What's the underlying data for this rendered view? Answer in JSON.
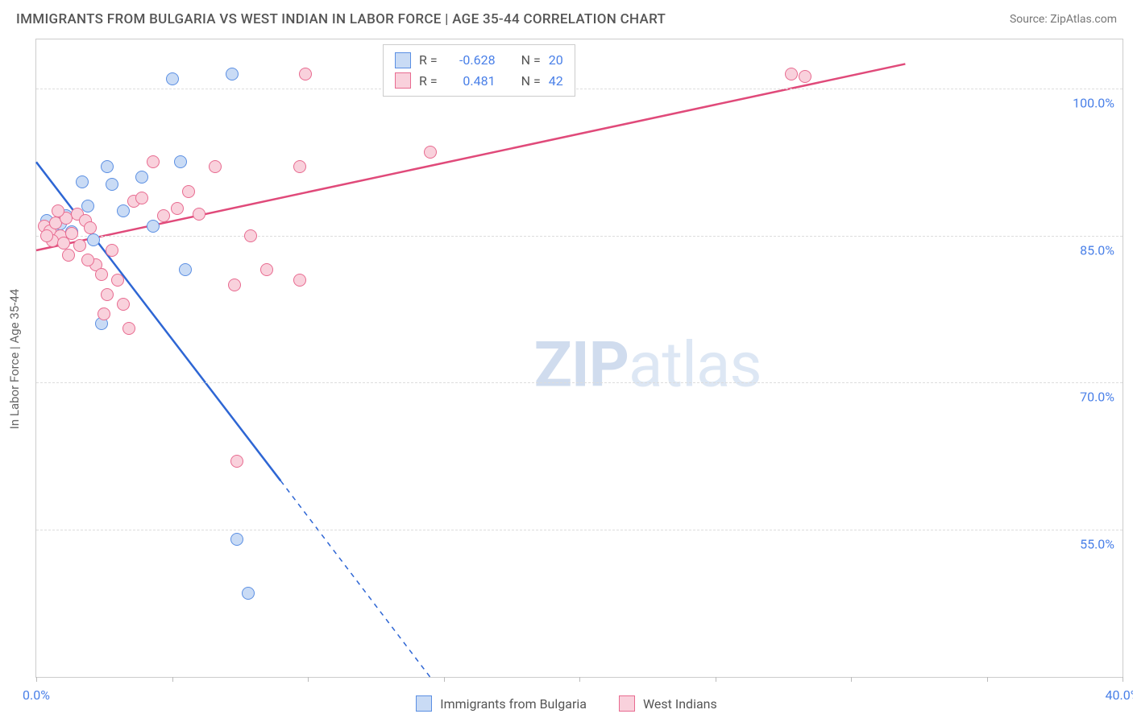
{
  "title": "IMMIGRANTS FROM BULGARIA VS WEST INDIAN IN LABOR FORCE | AGE 35-44 CORRELATION CHART",
  "source": "Source: ZipAtlas.com",
  "y_axis_title": "In Labor Force | Age 35-44",
  "watermark_bold": "ZIP",
  "watermark_light": "atlas",
  "chart": {
    "type": "scatter-with-regression",
    "xlim": [
      0,
      40
    ],
    "ylim": [
      40,
      105
    ],
    "x_ticks": [
      0,
      5,
      10,
      15,
      20,
      25,
      30,
      35,
      40
    ],
    "x_tick_labels": {
      "0": "0.0%",
      "40": "40.0%"
    },
    "y_grid": [
      55,
      70,
      85,
      100
    ],
    "y_tick_labels": {
      "55": "55.0%",
      "70": "70.0%",
      "85": "85.0%",
      "100": "100.0%"
    },
    "background_color": "#ffffff",
    "grid_color": "#dddddd",
    "axis_color": "#cccccc",
    "tick_label_color": "#4a80e8",
    "tick_fontsize": 16,
    "point_radius": 8,
    "point_stroke_width": 1.2,
    "line_width": 2.5,
    "series": [
      {
        "name": "Immigrants from Bulgaria",
        "fill": "#c9dbf5",
        "stroke": "#5b8fe3",
        "line_color": "#2e66d4",
        "R": "-0.628",
        "N": "20",
        "points": [
          [
            0.4,
            86.5
          ],
          [
            0.6,
            85.8
          ],
          [
            0.9,
            86.2
          ],
          [
            1.1,
            87.0
          ],
          [
            1.3,
            85.4
          ],
          [
            1.7,
            90.5
          ],
          [
            1.9,
            88.0
          ],
          [
            2.1,
            84.6
          ],
          [
            2.6,
            92.0
          ],
          [
            2.8,
            90.2
          ],
          [
            3.2,
            87.5
          ],
          [
            3.9,
            91.0
          ],
          [
            4.3,
            86.0
          ],
          [
            5.0,
            101.0
          ],
          [
            5.5,
            81.5
          ],
          [
            2.4,
            76.0
          ],
          [
            7.4,
            54.0
          ],
          [
            7.8,
            48.5
          ],
          [
            7.2,
            101.5
          ],
          [
            5.3,
            92.5
          ]
        ],
        "regression": {
          "x1": 0,
          "y1": 92.5,
          "x2": 9.0,
          "y2": 60.0,
          "dash_from_x": 9.0,
          "dash_x2": 14.5,
          "dash_y2": 40.0
        }
      },
      {
        "name": "West Indians",
        "fill": "#f9d1dc",
        "stroke": "#e86b90",
        "line_color": "#e04a7a",
        "R": "0.481",
        "N": "42",
        "points": [
          [
            0.3,
            86.0
          ],
          [
            0.5,
            85.5
          ],
          [
            0.7,
            86.3
          ],
          [
            0.9,
            85.0
          ],
          [
            1.1,
            86.8
          ],
          [
            1.3,
            85.2
          ],
          [
            1.5,
            87.2
          ],
          [
            1.6,
            84.0
          ],
          [
            1.8,
            86.5
          ],
          [
            2.0,
            85.8
          ],
          [
            2.2,
            82.0
          ],
          [
            2.4,
            81.0
          ],
          [
            2.6,
            79.0
          ],
          [
            2.8,
            83.5
          ],
          [
            3.0,
            80.5
          ],
          [
            3.2,
            78.0
          ],
          [
            3.4,
            75.5
          ],
          [
            3.6,
            88.5
          ],
          [
            3.9,
            88.8
          ],
          [
            4.3,
            92.5
          ],
          [
            4.7,
            87.0
          ],
          [
            5.2,
            87.8
          ],
          [
            5.6,
            89.5
          ],
          [
            6.0,
            87.2
          ],
          [
            6.6,
            92.0
          ],
          [
            7.3,
            80.0
          ],
          [
            7.4,
            62.0
          ],
          [
            7.9,
            85.0
          ],
          [
            8.5,
            81.5
          ],
          [
            9.7,
            80.5
          ],
          [
            9.9,
            101.5
          ],
          [
            9.7,
            92.0
          ],
          [
            14.5,
            93.5
          ],
          [
            27.8,
            101.5
          ],
          [
            28.3,
            101.2
          ],
          [
            1.2,
            83.0
          ],
          [
            1.9,
            82.5
          ],
          [
            2.5,
            77.0
          ],
          [
            0.6,
            84.5
          ],
          [
            0.8,
            87.5
          ],
          [
            1.0,
            84.2
          ],
          [
            0.4,
            85.0
          ]
        ],
        "regression": {
          "x1": 0,
          "y1": 83.5,
          "x2": 32.0,
          "y2": 102.5
        }
      }
    ]
  },
  "bottom_legend": [
    {
      "label": "Immigrants from Bulgaria",
      "fill": "#c9dbf5",
      "stroke": "#5b8fe3"
    },
    {
      "label": "West Indians",
      "fill": "#f9d1dc",
      "stroke": "#e86b90"
    }
  ]
}
